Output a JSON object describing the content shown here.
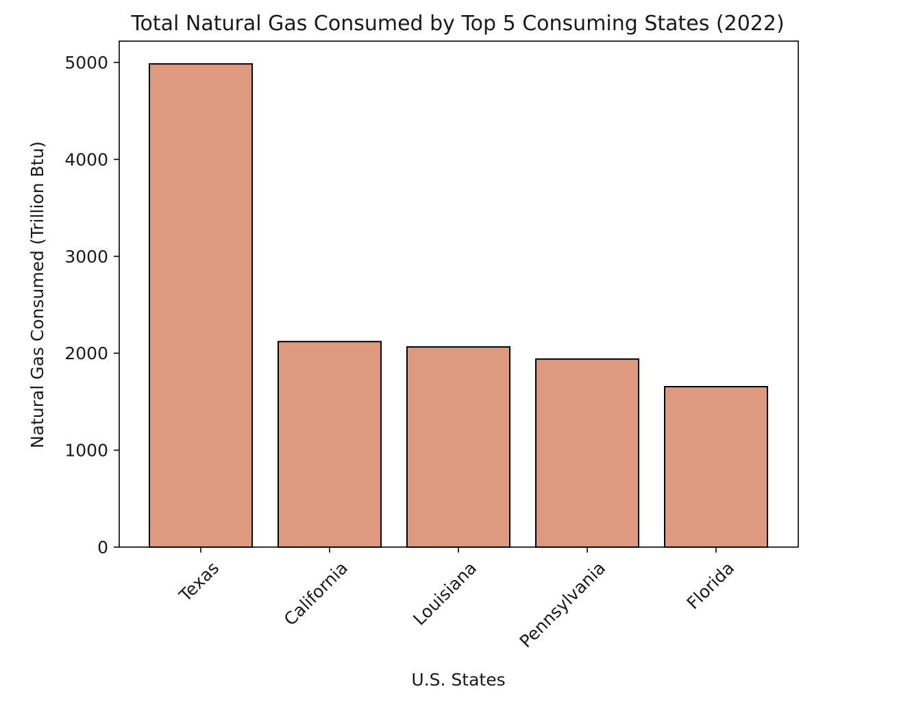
{
  "chart_data": {
    "type": "bar",
    "title": "Total Natural Gas Consumed by Top 5 Consuming States (2022)",
    "xlabel": "U.S. States",
    "ylabel": "Natural Gas Consumed (Trillion Btu)",
    "categories": [
      "Texas",
      "California",
      "Louisiana",
      "Pennsylvania",
      "Florida"
    ],
    "values": [
      4985,
      2120,
      2065,
      1940,
      1655
    ],
    "ylim": [
      0,
      5220
    ],
    "yticks": [
      0,
      1000,
      2000,
      3000,
      4000,
      5000
    ],
    "ytick_labels": [
      "0",
      "1000",
      "2000",
      "3000",
      "4000",
      "5000"
    ],
    "xtick_rotation_deg": 45,
    "grid": false,
    "legend": "none",
    "colors": {
      "bar_fill": "#DE9A7E",
      "bar_edge": "#000000",
      "axis": "#000000",
      "text": "#1a1a1a",
      "background": "#ffffff"
    }
  }
}
